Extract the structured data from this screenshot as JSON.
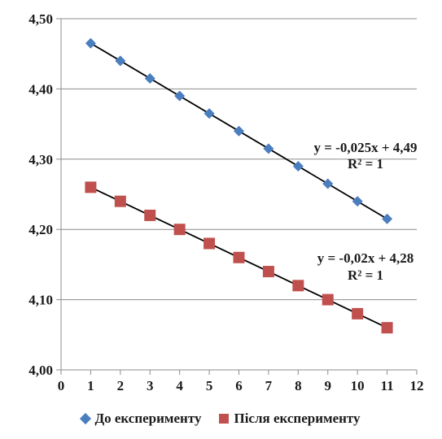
{
  "chart_data": {
    "type": "scatter",
    "title": "",
    "xlabel": "",
    "ylabel": "",
    "xlim": [
      0,
      12
    ],
    "ylim": [
      4.0,
      4.5
    ],
    "x_ticks": [
      "0",
      "1",
      "2",
      "3",
      "4",
      "5",
      "6",
      "7",
      "8",
      "9",
      "10",
      "11",
      "12"
    ],
    "y_ticks": [
      "4,00",
      "4,10",
      "4,20",
      "4,30",
      "4,40",
      "4,50"
    ],
    "grid": "horizontal",
    "legend_position": "bottom",
    "series": [
      {
        "name": "До експерименту",
        "marker": "diamond",
        "color": "#4a7ebf",
        "x": [
          1,
          2,
          3,
          4,
          5,
          6,
          7,
          8,
          9,
          10,
          11
        ],
        "y": [
          4.465,
          4.44,
          4.415,
          4.39,
          4.365,
          4.34,
          4.315,
          4.29,
          4.265,
          4.24,
          4.215
        ],
        "trendline": {
          "slope": -0.025,
          "intercept": 4.49,
          "equation": "y = -0,025x + 4,49",
          "r2": "R² = 1"
        }
      },
      {
        "name": "Після експерименту",
        "marker": "square",
        "color": "#c0504d",
        "x": [
          1,
          2,
          3,
          4,
          5,
          6,
          7,
          8,
          9,
          10,
          11
        ],
        "y": [
          4.26,
          4.24,
          4.22,
          4.2,
          4.18,
          4.16,
          4.14,
          4.12,
          4.1,
          4.08,
          4.06
        ],
        "trendline": {
          "slope": -0.02,
          "intercept": 4.28,
          "equation": "y = -0,02x + 4,28",
          "r2": "R² = 1"
        }
      }
    ]
  }
}
